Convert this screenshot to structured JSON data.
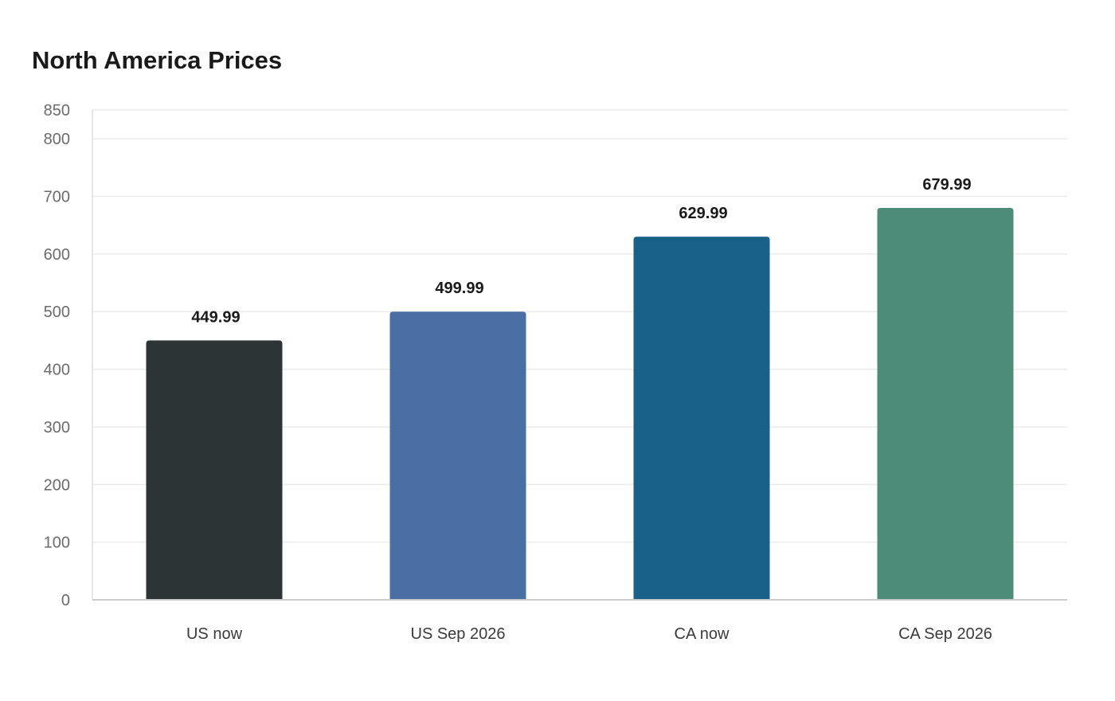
{
  "chart_data": {
    "type": "bar",
    "title": "North America Prices",
    "xlabel": "",
    "ylabel": "",
    "categories": [
      "US now",
      "US Sep 2026",
      "CA now",
      "CA Sep 2026"
    ],
    "values": [
      449.99,
      499.99,
      629.99,
      679.99
    ],
    "value_labels": [
      "449.99",
      "499.99",
      "629.99",
      "679.99"
    ],
    "colors": [
      "#2d3436",
      "#4a6fa5",
      "#1a6188",
      "#4e8c7a"
    ],
    "ylim": [
      0,
      850
    ],
    "yticks": [
      0,
      100,
      200,
      300,
      400,
      500,
      600,
      700,
      800,
      850
    ],
    "grid": true,
    "legend": "none"
  }
}
